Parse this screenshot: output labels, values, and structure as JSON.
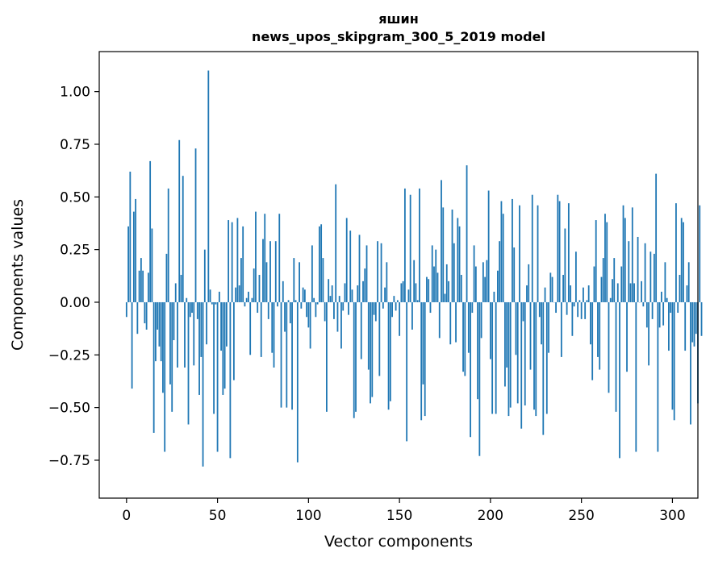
{
  "chart_data": {
    "type": "bar",
    "title_line1": "яшин",
    "title_line2": "news_upos_skipgram_300_5_2019 model",
    "xlabel": "Vector components",
    "ylabel": "Components values",
    "xlim": [
      -15,
      314
    ],
    "ylim": [
      -0.93,
      1.19
    ],
    "xticks": [
      0,
      50,
      100,
      150,
      200,
      250,
      300
    ],
    "xtick_labels": [
      "0",
      "50",
      "100",
      "150",
      "200",
      "250",
      "300"
    ],
    "yticks": [
      -0.75,
      -0.5,
      -0.25,
      0.0,
      0.25,
      0.5,
      0.75,
      1.0
    ],
    "ytick_labels": [
      "−0.75",
      "−0.50",
      "−0.25",
      "0.00",
      "0.25",
      "0.50",
      "0.75",
      "1.00"
    ],
    "bar_color": "#1f77b4",
    "x_start": 0,
    "values": [
      -0.07,
      0.36,
      0.62,
      -0.41,
      0.43,
      0.49,
      -0.15,
      0.15,
      0.21,
      0.15,
      -0.1,
      -0.13,
      0.14,
      0.67,
      0.35,
      -0.62,
      -0.28,
      -0.13,
      -0.21,
      -0.28,
      -0.43,
      -0.71,
      0.23,
      0.54,
      -0.39,
      -0.52,
      -0.18,
      0.09,
      -0.31,
      0.77,
      0.13,
      0.6,
      -0.31,
      0.02,
      -0.58,
      -0.07,
      -0.05,
      -0.3,
      0.73,
      -0.08,
      -0.44,
      -0.26,
      -0.78,
      0.25,
      -0.2,
      1.1,
      0.06,
      -0.01,
      -0.53,
      -0.01,
      -0.71,
      0.05,
      -0.23,
      -0.44,
      -0.41,
      -0.21,
      0.39,
      -0.74,
      0.38,
      -0.37,
      0.07,
      0.4,
      0.08,
      0.21,
      0.36,
      -0.02,
      0.02,
      0.05,
      -0.25,
      0.02,
      0.16,
      0.43,
      -0.05,
      0.13,
      -0.26,
      0.3,
      0.42,
      0.19,
      -0.08,
      0.29,
      -0.24,
      -0.31,
      0.29,
      -0.02,
      0.42,
      -0.5,
      0.1,
      -0.14,
      -0.5,
      0.01,
      -0.1,
      -0.51,
      0.21,
      0.01,
      -0.76,
      0.19,
      -0.03,
      0.07,
      0.06,
      -0.07,
      -0.12,
      -0.22,
      0.27,
      0.02,
      -0.07,
      -0.01,
      0.36,
      0.37,
      0.21,
      -0.09,
      -0.52,
      0.11,
      0.03,
      0.08,
      -0.08,
      0.56,
      -0.14,
      0.03,
      -0.22,
      -0.04,
      0.09,
      0.4,
      -0.06,
      0.34,
      0.06,
      -0.55,
      -0.52,
      0.08,
      0.32,
      -0.27,
      0.1,
      0.16,
      0.27,
      -0.32,
      -0.48,
      -0.45,
      -0.06,
      -0.09,
      0.29,
      -0.35,
      0.28,
      -0.03,
      0.07,
      0.19,
      -0.51,
      -0.47,
      -0.07,
      0.03,
      -0.04,
      0.01,
      -0.16,
      0.09,
      0.1,
      0.54,
      -0.66,
      0.06,
      0.51,
      -0.13,
      0.2,
      0.09,
      0.01,
      0.54,
      -0.56,
      -0.39,
      -0.54,
      0.12,
      0.11,
      -0.05,
      0.27,
      0.17,
      0.25,
      0.14,
      -0.17,
      0.58,
      0.45,
      0.04,
      0.18,
      0.1,
      -0.2,
      0.44,
      0.28,
      -0.19,
      0.4,
      0.36,
      0.13,
      -0.33,
      -0.35,
      0.65,
      -0.24,
      -0.64,
      -0.05,
      0.27,
      0.17,
      -0.46,
      -0.73,
      -0.17,
      0.19,
      0.12,
      0.2,
      0.53,
      -0.27,
      -0.53,
      0.05,
      -0.53,
      0.15,
      0.29,
      0.48,
      0.42,
      -0.4,
      -0.31,
      -0.54,
      -0.5,
      0.49,
      0.26,
      -0.25,
      -0.48,
      0.46,
      -0.6,
      -0.09,
      -0.49,
      0.08,
      0.18,
      -0.32,
      0.51,
      -0.51,
      -0.54,
      0.46,
      -0.07,
      -0.2,
      -0.63,
      0.07,
      -0.53,
      -0.24,
      0.14,
      0.12,
      0.0,
      -0.05,
      0.51,
      0.48,
      -0.26,
      0.13,
      0.35,
      -0.06,
      0.47,
      0.08,
      -0.16,
      -0.02,
      0.24,
      -0.07,
      0.01,
      -0.08,
      0.07,
      -0.08,
      0.01,
      0.08,
      -0.2,
      -0.37,
      0.17,
      0.39,
      -0.26,
      -0.32,
      0.12,
      0.21,
      0.42,
      0.38,
      -0.43,
      0.02,
      0.11,
      0.21,
      -0.52,
      0.09,
      -0.74,
      0.17,
      0.46,
      0.4,
      -0.33,
      0.29,
      0.09,
      0.45,
      0.09,
      -0.71,
      0.31,
      0.0,
      0.1,
      -0.02,
      0.28,
      -0.12,
      -0.3,
      0.24,
      -0.08,
      0.23,
      0.61,
      -0.71,
      -0.12,
      0.05,
      -0.11,
      0.19,
      0.02,
      -0.23,
      -0.05,
      -0.51,
      -0.56,
      0.47,
      -0.05,
      0.13,
      0.4,
      0.38,
      -0.23,
      0.08,
      0.19,
      -0.58,
      -0.19,
      -0.21,
      -0.15,
      -0.48,
      0.46,
      -0.16
    ]
  }
}
